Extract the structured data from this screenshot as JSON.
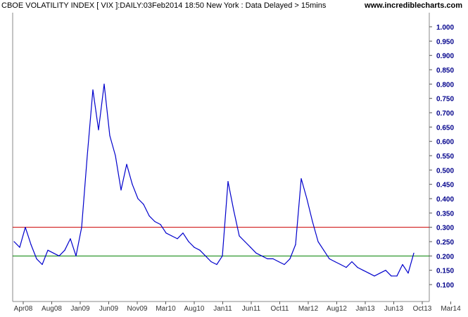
{
  "header": {
    "title": "CBOE VOLATILITY INDEX [ VIX ]:DAILY:03Feb2014 18:50 New York : Data Delayed > 15mins",
    "site": "www.incrediblecharts.com"
  },
  "chart_data": {
    "type": "line",
    "x_tick_labels": [
      "Apr08",
      "Aug08",
      "Jan09",
      "Jun09",
      "Nov09",
      "Mar10",
      "Aug10",
      "Jan11",
      "Jun11",
      "Oct11",
      "Mar12",
      "Aug12",
      "Jan13",
      "Jun13",
      "Oct13",
      "Mar14"
    ],
    "y_tick_labels": [
      "1.000",
      "0.950",
      "0.900",
      "0.850",
      "0.800",
      "0.750",
      "0.700",
      "0.650",
      "0.600",
      "0.550",
      "0.500",
      "0.450",
      "0.400",
      "0.350",
      "0.300",
      "0.250",
      "0.200",
      "0.150",
      "0.100"
    ],
    "ylim": [
      0.075,
      1.0
    ],
    "grid": false,
    "colors": {
      "series": "#0000cc",
      "red_line": "#cc0000",
      "green_line": "#008000",
      "ticks": "#00008b"
    },
    "reference_lines": [
      {
        "value": 0.3,
        "color": "#cc0000"
      },
      {
        "value": 0.2,
        "color": "#008000"
      }
    ],
    "series": [
      {
        "x": [
          0,
          1,
          2,
          3,
          4,
          5,
          6,
          7,
          8,
          9,
          10,
          11,
          12,
          13,
          14,
          15,
          16,
          17,
          18,
          19,
          20,
          21,
          22,
          23,
          24,
          25,
          26,
          27,
          28,
          29,
          30,
          31,
          32,
          33,
          34,
          35,
          36,
          37,
          38,
          39,
          40,
          41,
          42,
          43,
          44,
          45,
          46,
          47,
          48,
          49,
          50,
          51,
          52,
          53,
          54,
          55,
          56,
          57,
          58,
          59,
          60,
          61,
          62,
          63,
          64,
          65,
          66,
          67,
          68,
          69,
          70,
          71
        ],
        "values": [
          0.25,
          0.23,
          0.3,
          0.24,
          0.19,
          0.17,
          0.22,
          0.21,
          0.2,
          0.22,
          0.26,
          0.2,
          0.3,
          0.55,
          0.78,
          0.64,
          0.8,
          0.62,
          0.55,
          0.43,
          0.52,
          0.45,
          0.4,
          0.38,
          0.34,
          0.32,
          0.31,
          0.28,
          0.27,
          0.26,
          0.28,
          0.25,
          0.23,
          0.22,
          0.2,
          0.18,
          0.17,
          0.2,
          0.46,
          0.36,
          0.27,
          0.25,
          0.23,
          0.21,
          0.2,
          0.19,
          0.19,
          0.18,
          0.17,
          0.19,
          0.24,
          0.47,
          0.4,
          0.32,
          0.25,
          0.22,
          0.19,
          0.18,
          0.17,
          0.16,
          0.18,
          0.16,
          0.15,
          0.14,
          0.13,
          0.14,
          0.15,
          0.13,
          0.13,
          0.17,
          0.14,
          0.21
        ]
      }
    ]
  }
}
